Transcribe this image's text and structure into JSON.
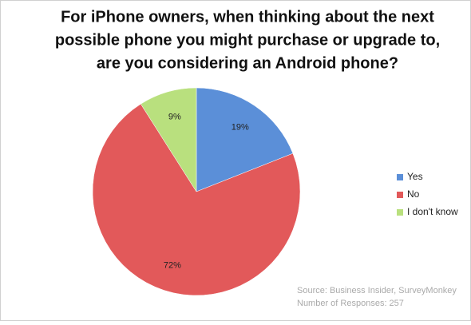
{
  "chart_data": {
    "type": "pie",
    "title": [
      "For iPhone owners, when thinking about the next",
      "possible phone you might purchase or upgrade to,",
      "are you considering an Android phone?"
    ],
    "categories": [
      "Yes",
      "No",
      "I don't know"
    ],
    "values": [
      19,
      72,
      9
    ],
    "value_labels": [
      "19%",
      "72%",
      "9%"
    ],
    "colors": [
      "#5b8fd8",
      "#e2595a",
      "#b9e07e"
    ],
    "legend": "right",
    "source": [
      "Source: Business Insider, SurveyMonkey",
      "Number of Responses: 257"
    ]
  }
}
